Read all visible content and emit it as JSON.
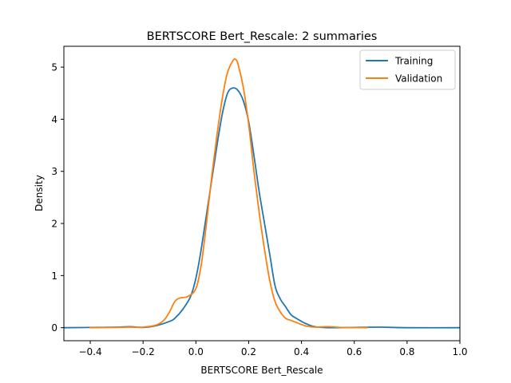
{
  "chart_data": {
    "type": "line",
    "title": "BERTSCORE Bert_Rescale: 2 summaries",
    "xlabel": "BERTSCORE Bert_Rescale",
    "ylabel": "Density",
    "xlim": [
      -0.5,
      1.0
    ],
    "ylim": [
      -0.25,
      5.4
    ],
    "xticks": [
      -0.4,
      -0.2,
      0.0,
      0.2,
      0.4,
      0.6,
      0.8,
      1.0
    ],
    "xtick_labels": [
      "−0.4",
      "−0.2",
      "0.0",
      "0.2",
      "0.4",
      "0.6",
      "0.8",
      "1.0"
    ],
    "yticks": [
      0,
      1,
      2,
      3,
      4,
      5
    ],
    "ytick_labels": [
      "0",
      "1",
      "2",
      "3",
      "4",
      "5"
    ],
    "grid": false,
    "legend": "top-right",
    "series": [
      {
        "name": "Training",
        "color": "#1f77b4",
        "points": [
          [
            -0.5,
            0.0
          ],
          [
            -0.4,
            0.005
          ],
          [
            -0.3,
            0.01
          ],
          [
            -0.25,
            0.02
          ],
          [
            -0.2,
            0.005
          ],
          [
            -0.15,
            0.04
          ],
          [
            -0.1,
            0.12
          ],
          [
            -0.08,
            0.18
          ],
          [
            -0.05,
            0.35
          ],
          [
            -0.02,
            0.6
          ],
          [
            0.0,
            0.95
          ],
          [
            0.02,
            1.5
          ],
          [
            0.05,
            2.5
          ],
          [
            0.08,
            3.5
          ],
          [
            0.1,
            4.1
          ],
          [
            0.12,
            4.5
          ],
          [
            0.14,
            4.6
          ],
          [
            0.16,
            4.55
          ],
          [
            0.18,
            4.35
          ],
          [
            0.2,
            3.95
          ],
          [
            0.22,
            3.3
          ],
          [
            0.24,
            2.6
          ],
          [
            0.26,
            2.0
          ],
          [
            0.28,
            1.4
          ],
          [
            0.3,
            0.8
          ],
          [
            0.32,
            0.55
          ],
          [
            0.34,
            0.4
          ],
          [
            0.36,
            0.25
          ],
          [
            0.38,
            0.18
          ],
          [
            0.4,
            0.12
          ],
          [
            0.42,
            0.07
          ],
          [
            0.45,
            0.02
          ],
          [
            0.5,
            0.0
          ],
          [
            0.6,
            0.005
          ],
          [
            0.7,
            0.01
          ],
          [
            0.8,
            0.0
          ],
          [
            1.0,
            0.0
          ]
        ]
      },
      {
        "name": "Validation",
        "color": "#ff7f0e",
        "points": [
          [
            -0.4,
            0.0
          ],
          [
            -0.3,
            0.005
          ],
          [
            -0.25,
            0.01
          ],
          [
            -0.2,
            0.01
          ],
          [
            -0.15,
            0.05
          ],
          [
            -0.12,
            0.15
          ],
          [
            -0.1,
            0.3
          ],
          [
            -0.08,
            0.5
          ],
          [
            -0.06,
            0.57
          ],
          [
            -0.03,
            0.6
          ],
          [
            0.0,
            0.75
          ],
          [
            0.02,
            1.2
          ],
          [
            0.04,
            2.0
          ],
          [
            0.06,
            2.9
          ],
          [
            0.08,
            3.7
          ],
          [
            0.1,
            4.4
          ],
          [
            0.12,
            4.9
          ],
          [
            0.14,
            5.12
          ],
          [
            0.15,
            5.15
          ],
          [
            0.16,
            5.05
          ],
          [
            0.18,
            4.6
          ],
          [
            0.2,
            3.9
          ],
          [
            0.22,
            3.0
          ],
          [
            0.24,
            2.2
          ],
          [
            0.26,
            1.5
          ],
          [
            0.28,
            0.9
          ],
          [
            0.3,
            0.5
          ],
          [
            0.32,
            0.3
          ],
          [
            0.34,
            0.18
          ],
          [
            0.36,
            0.14
          ],
          [
            0.38,
            0.1
          ],
          [
            0.4,
            0.06
          ],
          [
            0.42,
            0.03
          ],
          [
            0.45,
            0.01
          ],
          [
            0.5,
            0.02
          ],
          [
            0.55,
            0.005
          ],
          [
            0.65,
            0.0
          ]
        ]
      }
    ]
  }
}
